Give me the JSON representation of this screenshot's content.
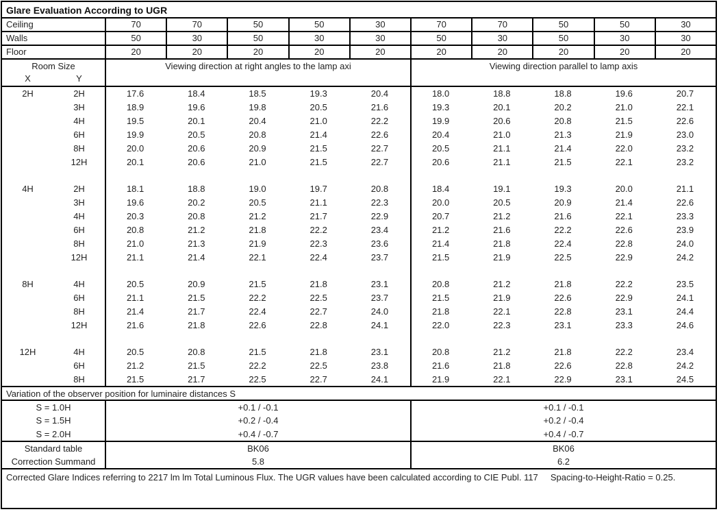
{
  "title": "Glare Evaluation According to UGR",
  "surface_rows": [
    {
      "label": "Ceiling",
      "values": [
        "70",
        "70",
        "50",
        "50",
        "30",
        "70",
        "70",
        "50",
        "50",
        "30"
      ]
    },
    {
      "label": "Walls",
      "values": [
        "50",
        "30",
        "50",
        "30",
        "30",
        "50",
        "30",
        "50",
        "30",
        "30"
      ]
    },
    {
      "label": "Floor",
      "values": [
        "20",
        "20",
        "20",
        "20",
        "20",
        "20",
        "20",
        "20",
        "20",
        "20"
      ]
    }
  ],
  "header": {
    "room_size": "Room Size",
    "x": "X",
    "y": "Y",
    "left_group": "Viewing direction at right angles to the lamp axi",
    "right_group": "Viewing direction parallel to lamp axis"
  },
  "blocks": [
    {
      "rows": [
        {
          "x": "2H",
          "y": "2H",
          "v": [
            "17.6",
            "18.4",
            "18.5",
            "19.3",
            "20.4",
            "18.0",
            "18.8",
            "18.8",
            "19.6",
            "20.7"
          ]
        },
        {
          "x": "",
          "y": "3H",
          "v": [
            "18.9",
            "19.6",
            "19.8",
            "20.5",
            "21.6",
            "19.3",
            "20.1",
            "20.2",
            "21.0",
            "22.1"
          ]
        },
        {
          "x": "",
          "y": "4H",
          "v": [
            "19.5",
            "20.1",
            "20.4",
            "21.0",
            "22.2",
            "19.9",
            "20.6",
            "20.8",
            "21.5",
            "22.6"
          ]
        },
        {
          "x": "",
          "y": "6H",
          "v": [
            "19.9",
            "20.5",
            "20.8",
            "21.4",
            "22.6",
            "20.4",
            "21.0",
            "21.3",
            "21.9",
            "23.0"
          ]
        },
        {
          "x": "",
          "y": "8H",
          "v": [
            "20.0",
            "20.6",
            "20.9",
            "21.5",
            "22.7",
            "20.5",
            "21.1",
            "21.4",
            "22.0",
            "23.2"
          ]
        },
        {
          "x": "",
          "y": "12H",
          "v": [
            "20.1",
            "20.6",
            "21.0",
            "21.5",
            "22.7",
            "20.6",
            "21.1",
            "21.5",
            "22.1",
            "23.2"
          ]
        }
      ]
    },
    {
      "rows": [
        {
          "x": "4H",
          "y": "2H",
          "v": [
            "18.1",
            "18.8",
            "19.0",
            "19.7",
            "20.8",
            "18.4",
            "19.1",
            "19.3",
            "20.0",
            "21.1"
          ]
        },
        {
          "x": "",
          "y": "3H",
          "v": [
            "19.6",
            "20.2",
            "20.5",
            "21.1",
            "22.3",
            "20.0",
            "20.5",
            "20.9",
            "21.4",
            "22.6"
          ]
        },
        {
          "x": "",
          "y": "4H",
          "v": [
            "20.3",
            "20.8",
            "21.2",
            "21.7",
            "22.9",
            "20.7",
            "21.2",
            "21.6",
            "22.1",
            "23.3"
          ]
        },
        {
          "x": "",
          "y": "6H",
          "v": [
            "20.8",
            "21.2",
            "21.8",
            "22.2",
            "23.4",
            "21.2",
            "21.6",
            "22.2",
            "22.6",
            "23.9"
          ]
        },
        {
          "x": "",
          "y": "8H",
          "v": [
            "21.0",
            "21.3",
            "21.9",
            "22.3",
            "23.6",
            "21.4",
            "21.8",
            "22.4",
            "22.8",
            "24.0"
          ]
        },
        {
          "x": "",
          "y": "12H",
          "v": [
            "21.1",
            "21.4",
            "22.1",
            "22.4",
            "23.7",
            "21.5",
            "21.9",
            "22.5",
            "22.9",
            "24.2"
          ]
        }
      ]
    },
    {
      "rows": [
        {
          "x": "8H",
          "y": "4H",
          "v": [
            "20.5",
            "20.9",
            "21.5",
            "21.8",
            "23.1",
            "20.8",
            "21.2",
            "21.8",
            "22.2",
            "23.5"
          ]
        },
        {
          "x": "",
          "y": "6H",
          "v": [
            "21.1",
            "21.5",
            "22.2",
            "22.5",
            "23.7",
            "21.5",
            "21.9",
            "22.6",
            "22.9",
            "24.1"
          ]
        },
        {
          "x": "",
          "y": "8H",
          "v": [
            "21.4",
            "21.7",
            "22.4",
            "22.7",
            "24.0",
            "21.8",
            "22.1",
            "22.8",
            "23.1",
            "24.4"
          ]
        },
        {
          "x": "",
          "y": "12H",
          "v": [
            "21.6",
            "21.8",
            "22.6",
            "22.8",
            "24.1",
            "22.0",
            "22.3",
            "23.1",
            "23.3",
            "24.6"
          ]
        }
      ]
    },
    {
      "rows": [
        {
          "x": "12H",
          "y": "4H",
          "v": [
            "20.5",
            "20.8",
            "21.5",
            "21.8",
            "23.1",
            "20.8",
            "21.2",
            "21.8",
            "22.2",
            "23.4"
          ]
        },
        {
          "x": "",
          "y": "6H",
          "v": [
            "21.2",
            "21.5",
            "22.2",
            "22.5",
            "23.8",
            "21.6",
            "21.8",
            "22.6",
            "22.8",
            "24.2"
          ]
        },
        {
          "x": "",
          "y": "8H",
          "v": [
            "21.5",
            "21.7",
            "22.5",
            "22.7",
            "24.1",
            "21.9",
            "22.1",
            "22.9",
            "23.1",
            "24.5"
          ]
        }
      ]
    }
  ],
  "variation_title": "Variation of the observer position for luminaire distances S",
  "variation_rows": [
    {
      "label": "S = 1.0H",
      "left": "+0.1 / -0.1",
      "right": "+0.1 / -0.1"
    },
    {
      "label": "S = 1.5H",
      "left": "+0.2 / -0.4",
      "right": "+0.2 / -0.4"
    },
    {
      "label": "S = 2.0H",
      "left": "+0.4 / -0.7",
      "right": "+0.4 / -0.7"
    }
  ],
  "summary_rows": [
    {
      "label": "Standard table",
      "left": "BK06",
      "right": "BK06"
    },
    {
      "label": "Correction Summand",
      "left": "5.8",
      "right": "6.2"
    }
  ],
  "footer": "Corrected Glare Indices referring to 2217 lm lm Total Luminous Flux. The UGR values have been calculated according to CIE Publ. 117     Spacing-to-Height-Ratio = 0.25."
}
